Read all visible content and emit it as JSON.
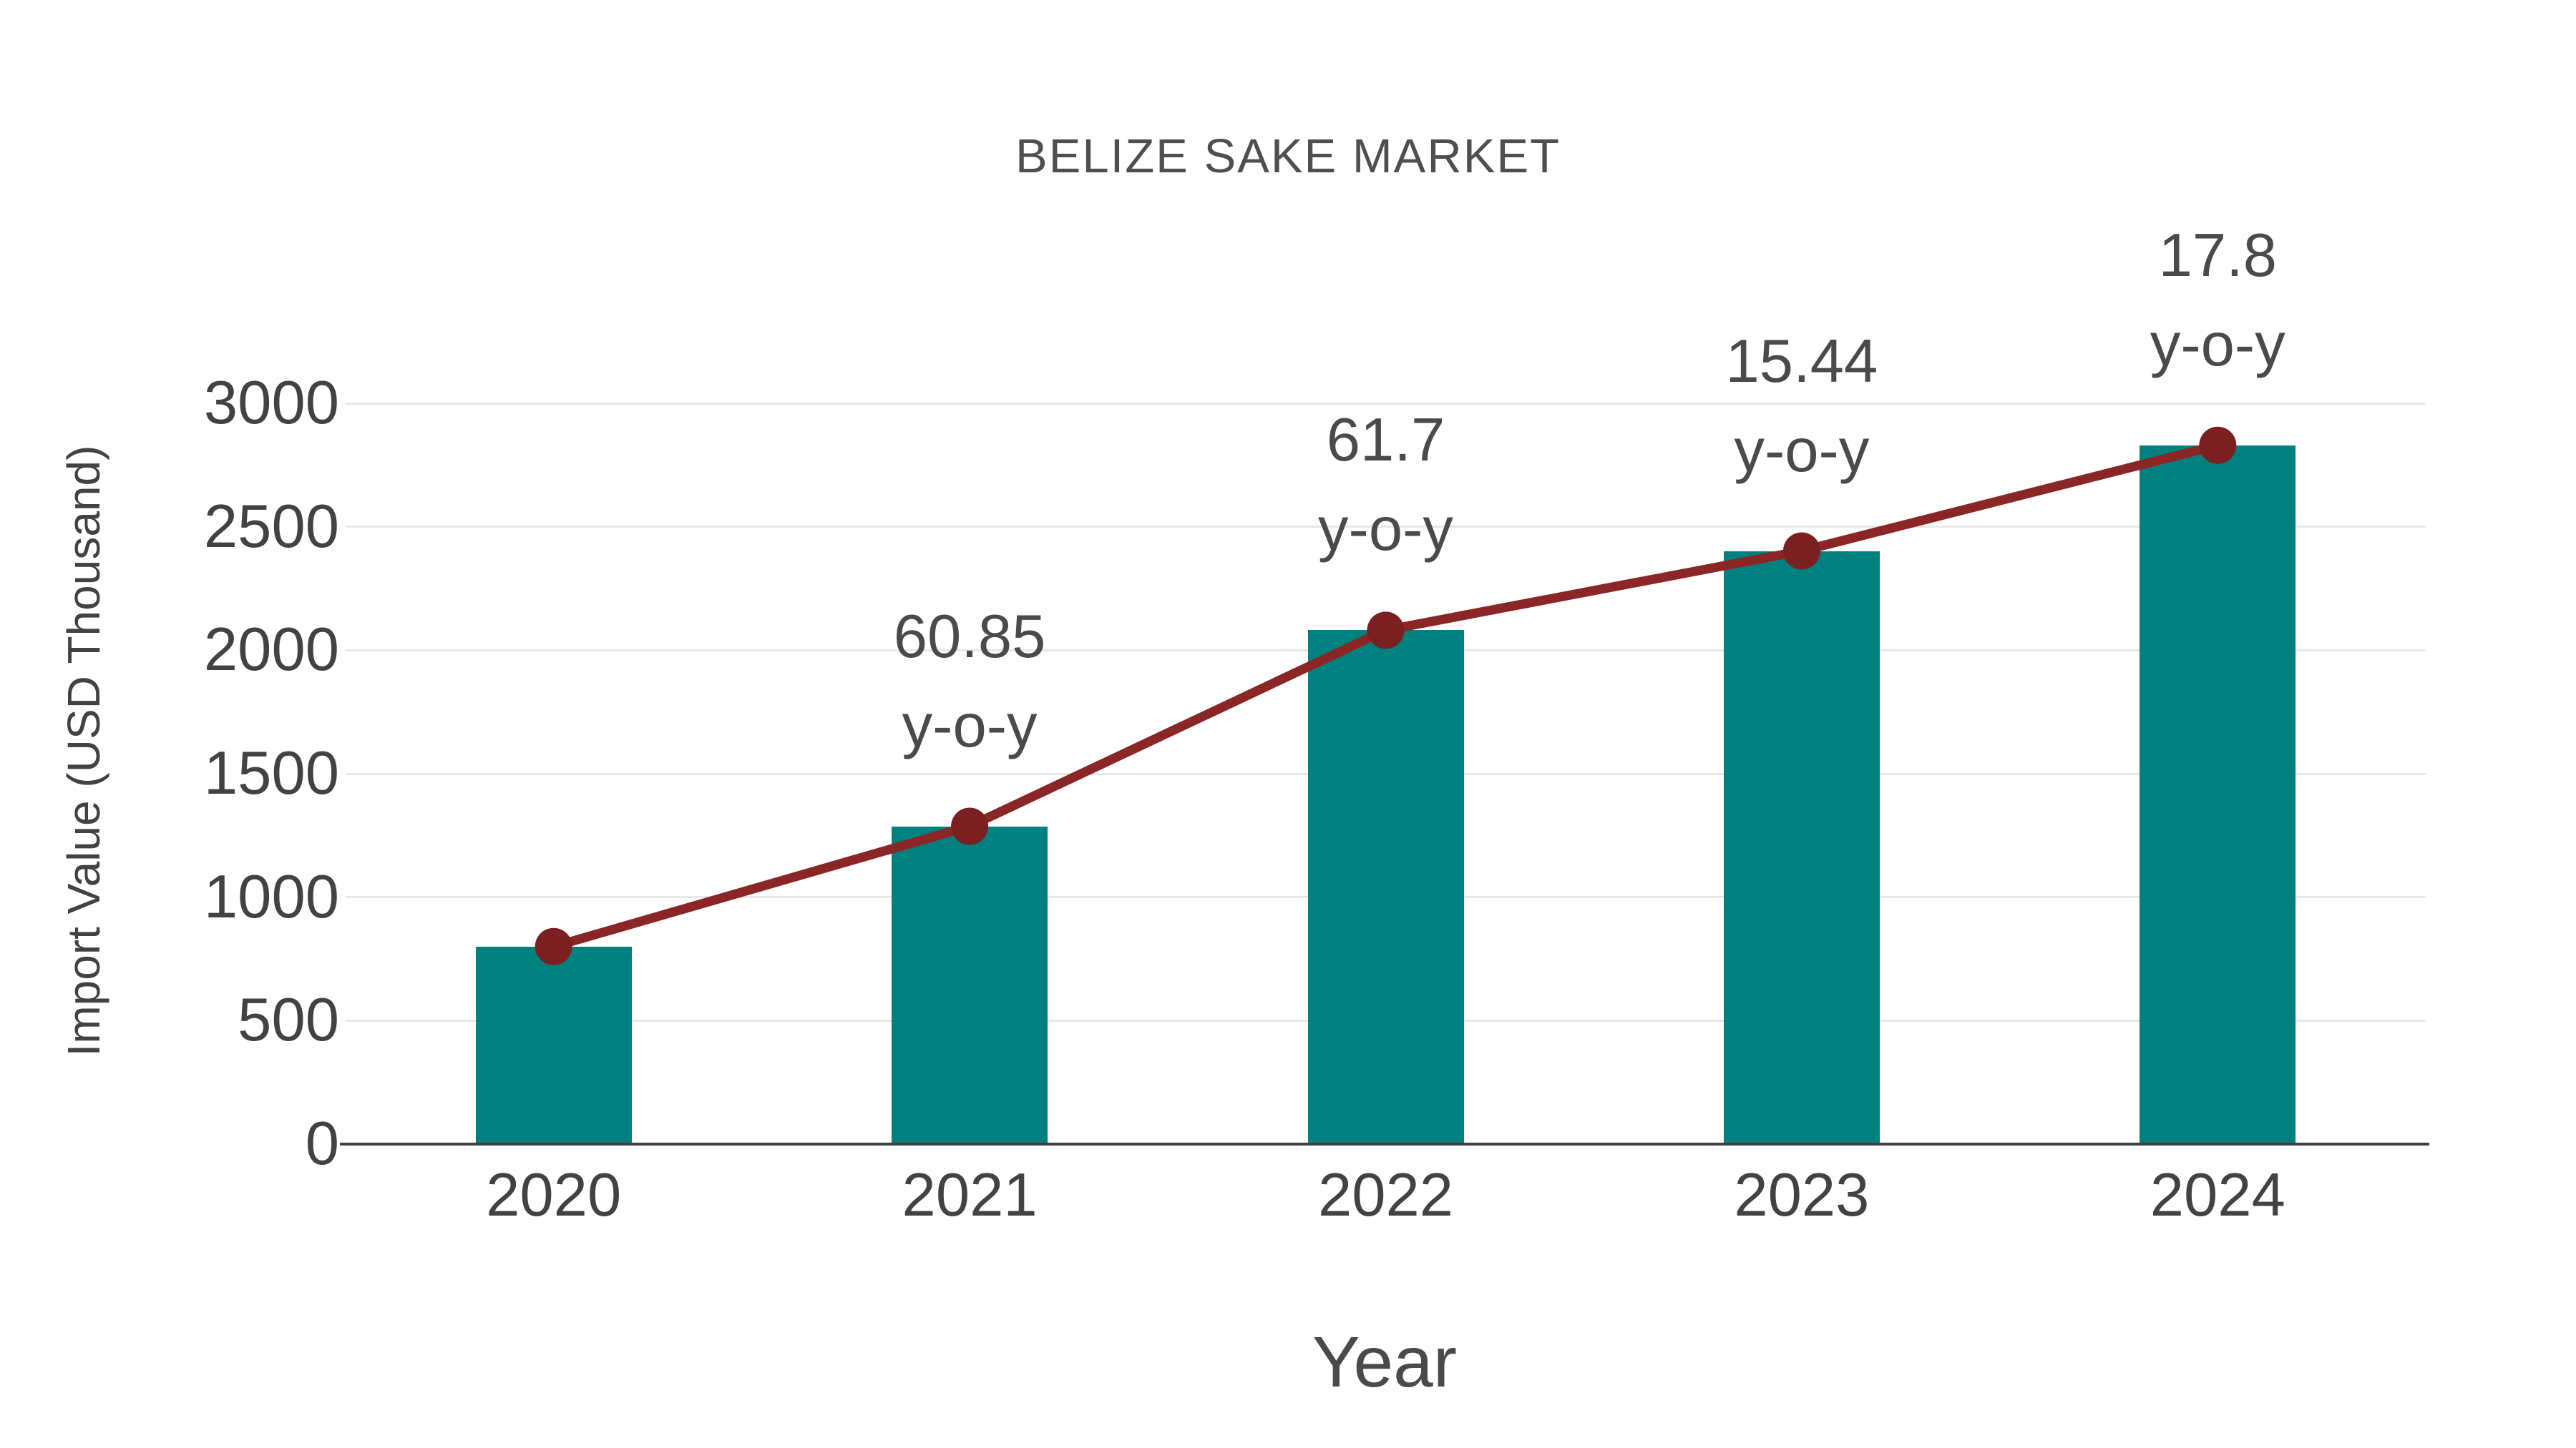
{
  "title": "BELIZE SAKE MARKET",
  "colors": {
    "bar": "#018080",
    "line": "#8b2626",
    "marker": "#7a2020",
    "grid": "#e8e8e8",
    "axis": "#3f3f3f",
    "text": "#424242"
  },
  "chart_data": {
    "type": "bar",
    "title": "BELIZE SAKE MARKET",
    "xlabel": "Year",
    "ylabel": "Import Value (USD Thousand)",
    "categories": [
      "2020",
      "2021",
      "2022",
      "2023",
      "2024"
    ],
    "series": [
      {
        "name": "Import Value bars",
        "type": "bar",
        "values": [
          800,
          1287,
          2081,
          2402,
          2830
        ]
      },
      {
        "name": "Import Value trend line",
        "type": "line",
        "values": [
          800,
          1287,
          2081,
          2402,
          2830
        ]
      }
    ],
    "annotations": [
      {
        "category": "2021",
        "lines": [
          "60.85",
          "y-o-y"
        ],
        "value_pct": 60.85
      },
      {
        "category": "2022",
        "lines": [
          "61.7",
          "y-o-y"
        ],
        "value_pct": 61.7
      },
      {
        "category": "2023",
        "lines": [
          "15.44",
          "y-o-y"
        ],
        "value_pct": 15.44
      },
      {
        "category": "2024",
        "lines": [
          "17.8",
          "y-o-y"
        ],
        "value_pct": 17.8
      }
    ],
    "ylim": [
      0,
      3000
    ],
    "yticks": [
      0,
      500,
      1000,
      1500,
      2000,
      2500,
      3000
    ],
    "grid": true,
    "legend": false
  }
}
